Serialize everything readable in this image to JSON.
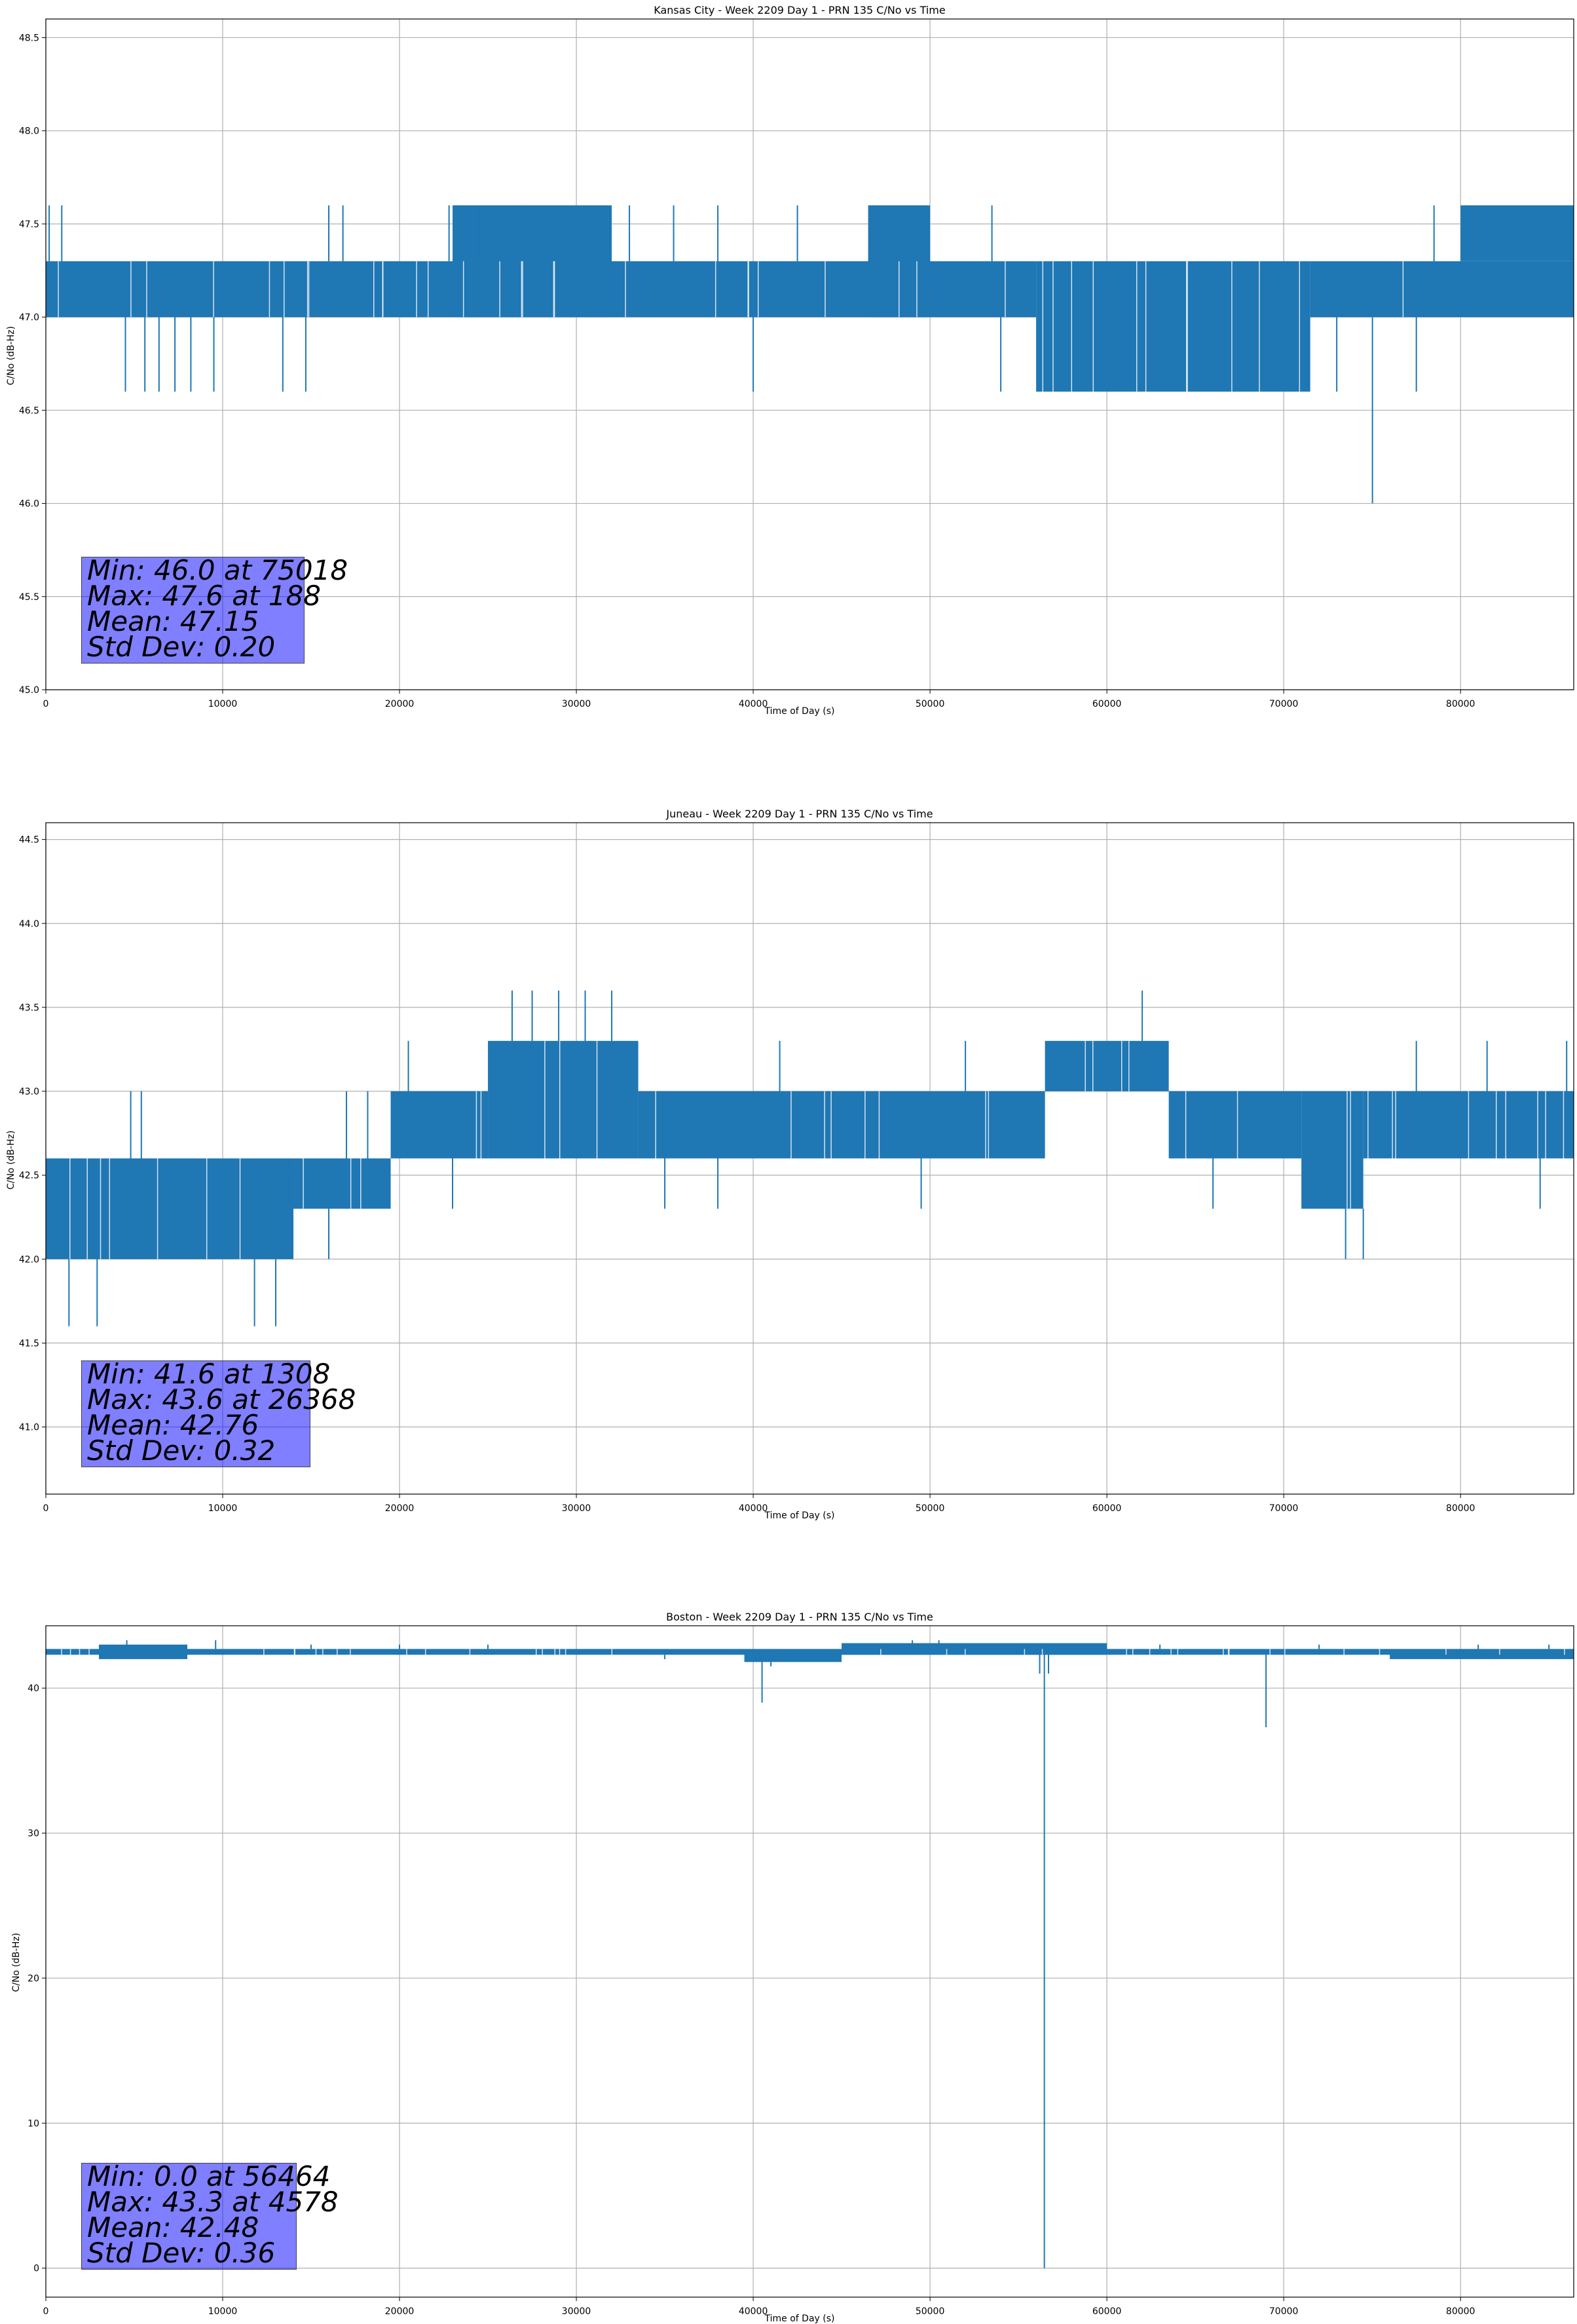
{
  "chart_data": [
    {
      "type": "line",
      "title": "Kansas City - Week 2209 Day 1 - PRN 135 C/No vs Time",
      "xlabel": "Time of Day (s)",
      "ylabel": "C/No (dB-Hz)",
      "xlim": [
        0,
        86400
      ],
      "ylim": [
        45.0,
        48.6
      ],
      "x_ticks": [
        0,
        10000,
        20000,
        30000,
        40000,
        50000,
        60000,
        70000,
        80000
      ],
      "x_tick_labels": [
        "0",
        "10000",
        "20000",
        "30000",
        "40000",
        "50000",
        "60000",
        "70000",
        "80000"
      ],
      "y_ticks": [
        45.0,
        45.5,
        46.0,
        46.5,
        47.0,
        47.5,
        48.0,
        48.5
      ],
      "y_tick_labels": [
        "45.0",
        "45.5",
        "46.0",
        "46.5",
        "47.0",
        "47.5",
        "48.0",
        "48.5"
      ],
      "grid": true,
      "color": "#1f77b4",
      "series": [
        {
          "values_band": [
            {
              "x0": 0,
              "x1": 56000,
              "low": 47.0,
              "high": 47.3
            },
            {
              "x0": 56000,
              "x1": 71500,
              "low": 46.6,
              "high": 47.3
            },
            {
              "x0": 71500,
              "x1": 86400,
              "low": 47.0,
              "high": 47.3
            },
            {
              "x0": 23000,
              "x1": 32000,
              "low": 47.0,
              "high": 47.6
            },
            {
              "x0": 46500,
              "x1": 50000,
              "low": 47.0,
              "high": 47.6
            },
            {
              "x0": 80000,
              "x1": 86400,
              "low": 47.3,
              "high": 47.6
            }
          ],
          "spikes": [
            [
              188,
              47.6
            ],
            [
              900,
              47.6
            ],
            [
              4500,
              46.6
            ],
            [
              5600,
              46.6
            ],
            [
              6400,
              46.6
            ],
            [
              7300,
              46.6
            ],
            [
              8200,
              46.6
            ],
            [
              9500,
              46.6
            ],
            [
              13400,
              46.6
            ],
            [
              14700,
              46.6
            ],
            [
              16000,
              47.6
            ],
            [
              16800,
              47.6
            ],
            [
              22800,
              47.6
            ],
            [
              24500,
              47.6
            ],
            [
              27000,
              47.6
            ],
            [
              33000,
              47.6
            ],
            [
              35500,
              47.6
            ],
            [
              38000,
              47.6
            ],
            [
              40000,
              46.6
            ],
            [
              42500,
              47.6
            ],
            [
              53500,
              47.6
            ],
            [
              54000,
              46.6
            ],
            [
              57000,
              46.6
            ],
            [
              64000,
              46.6
            ],
            [
              68000,
              46.6
            ],
            [
              73000,
              46.6
            ],
            [
              75018,
              46.0
            ],
            [
              77500,
              46.6
            ],
            [
              78500,
              47.6
            ]
          ]
        }
      ],
      "stats": {
        "min": "Min: 46.0 at 75018",
        "max": "Max: 47.6 at 188",
        "mean": "Mean: 47.15",
        "std": "Std Dev: 0.20"
      }
    },
    {
      "type": "line",
      "title": "Juneau - Week 2209 Day 1 - PRN 135 C/No vs Time",
      "xlabel": "Time of Day (s)",
      "ylabel": "C/No (dB-Hz)",
      "xlim": [
        0,
        86400
      ],
      "ylim": [
        40.6,
        44.6
      ],
      "x_ticks": [
        0,
        10000,
        20000,
        30000,
        40000,
        50000,
        60000,
        70000,
        80000
      ],
      "x_tick_labels": [
        "0",
        "10000",
        "20000",
        "30000",
        "40000",
        "50000",
        "60000",
        "70000",
        "80000"
      ],
      "y_ticks": [
        41.0,
        41.5,
        42.0,
        42.5,
        43.0,
        43.5,
        44.0,
        44.5
      ],
      "y_tick_labels": [
        "41.0",
        "41.5",
        "42.0",
        "42.5",
        "43.0",
        "43.5",
        "44.0",
        "44.5"
      ],
      "grid": true,
      "color": "#1f77b4",
      "series": [
        {
          "values_band": [
            {
              "x0": 0,
              "x1": 3500,
              "low": 42.0,
              "high": 42.6
            },
            {
              "x0": 3500,
              "x1": 14000,
              "low": 42.0,
              "high": 42.6
            },
            {
              "x0": 14000,
              "x1": 19500,
              "low": 42.3,
              "high": 42.6
            },
            {
              "x0": 19500,
              "x1": 25000,
              "low": 42.6,
              "high": 43.0
            },
            {
              "x0": 25000,
              "x1": 33500,
              "low": 42.6,
              "high": 43.3
            },
            {
              "x0": 33500,
              "x1": 56500,
              "low": 42.6,
              "high": 43.0
            },
            {
              "x0": 56500,
              "x1": 63500,
              "low": 43.0,
              "high": 43.3
            },
            {
              "x0": 63500,
              "x1": 71000,
              "low": 42.6,
              "high": 43.0
            },
            {
              "x0": 71000,
              "x1": 74500,
              "low": 42.3,
              "high": 43.0
            },
            {
              "x0": 74500,
              "x1": 86400,
              "low": 42.6,
              "high": 43.0
            }
          ],
          "spikes": [
            [
              1308,
              41.6
            ],
            [
              2900,
              41.6
            ],
            [
              4800,
              43.0
            ],
            [
              5400,
              43.0
            ],
            [
              11800,
              41.6
            ],
            [
              13000,
              41.6
            ],
            [
              16000,
              42.0
            ],
            [
              17000,
              43.0
            ],
            [
              18200,
              43.0
            ],
            [
              20500,
              43.3
            ],
            [
              23000,
              42.3
            ],
            [
              26368,
              43.6
            ],
            [
              27500,
              43.6
            ],
            [
              29000,
              43.6
            ],
            [
              30500,
              43.6
            ],
            [
              32000,
              43.6
            ],
            [
              35000,
              42.3
            ],
            [
              38000,
              42.3
            ],
            [
              41500,
              43.3
            ],
            [
              49500,
              42.3
            ],
            [
              52000,
              43.3
            ],
            [
              62000,
              43.6
            ],
            [
              66000,
              42.3
            ],
            [
              73500,
              42.0
            ],
            [
              74500,
              42.0
            ],
            [
              77500,
              43.3
            ],
            [
              81500,
              43.3
            ],
            [
              84500,
              42.3
            ],
            [
              86000,
              43.3
            ]
          ]
        }
      ],
      "stats": {
        "min": "Min: 41.6 at 1308",
        "max": "Max: 43.6 at 26368",
        "mean": "Mean: 42.76",
        "std": "Std Dev: 0.32"
      }
    },
    {
      "type": "line",
      "title": "Boston - Week 2209 Day 1 - PRN 135 C/No vs Time",
      "xlabel": "Time of Day (s)",
      "ylabel": "C/No (dB-Hz)",
      "xlim": [
        0,
        86400
      ],
      "ylim": [
        -2,
        44.3
      ],
      "x_ticks": [
        0,
        10000,
        20000,
        30000,
        40000,
        50000,
        60000,
        70000,
        80000
      ],
      "x_tick_labels": [
        "0",
        "10000",
        "20000",
        "30000",
        "40000",
        "50000",
        "60000",
        "70000",
        "80000"
      ],
      "y_ticks": [
        0,
        10,
        20,
        30,
        40
      ],
      "y_tick_labels": [
        "0",
        "10",
        "20",
        "30",
        "40"
      ],
      "grid": true,
      "color": "#1f77b4",
      "series": [
        {
          "values_band": [
            {
              "x0": 0,
              "x1": 86400,
              "low": 42.3,
              "high": 42.7
            },
            {
              "x0": 3000,
              "x1": 8000,
              "low": 42.0,
              "high": 43.0
            },
            {
              "x0": 39500,
              "x1": 45000,
              "low": 41.8,
              "high": 42.6
            },
            {
              "x0": 45000,
              "x1": 60000,
              "low": 42.3,
              "high": 43.1
            },
            {
              "x0": 76000,
              "x1": 86400,
              "low": 42.0,
              "high": 42.6
            }
          ],
          "spikes": [
            [
              4578,
              43.3
            ],
            [
              9600,
              43.3
            ],
            [
              15000,
              43.0
            ],
            [
              20000,
              43.0
            ],
            [
              25000,
              43.0
            ],
            [
              35000,
              42.0
            ],
            [
              40500,
              39.0
            ],
            [
              41000,
              41.5
            ],
            [
              49000,
              43.3
            ],
            [
              50500,
              43.3
            ],
            [
              56200,
              41.0
            ],
            [
              56464,
              0.0
            ],
            [
              56700,
              41.0
            ],
            [
              63000,
              43.0
            ],
            [
              69000,
              37.3
            ],
            [
              72000,
              43.0
            ],
            [
              81000,
              43.0
            ],
            [
              85000,
              43.0
            ]
          ]
        }
      ],
      "stats": {
        "min": "Min: 0.0 at 56464",
        "max": "Max: 43.3 at 4578",
        "mean": "Mean: 42.48",
        "std": "Std Dev: 0.36"
      }
    }
  ]
}
